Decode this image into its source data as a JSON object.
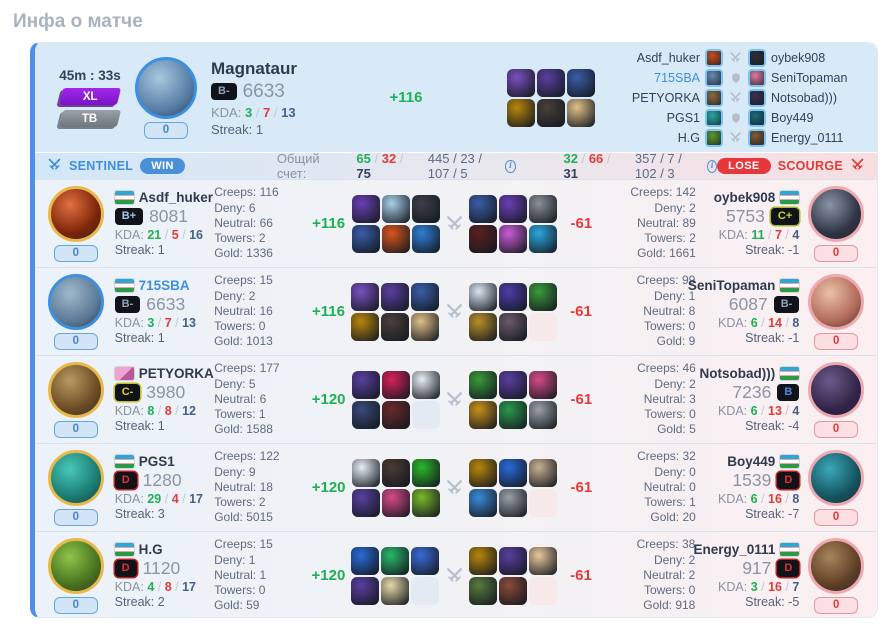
{
  "title": "Инфа о матче",
  "labels": {
    "kda": "KDA:",
    "streak": "Streak:",
    "creeps": "Creeps:",
    "deny": "Deny:",
    "neutral": "Neutral:",
    "towers": "Towers:",
    "gold": "Gold:"
  },
  "colors": {
    "accent": "#4f8fe8",
    "green": "#1faf54",
    "red": "#e23b3b",
    "win_pill": "#4a90d9",
    "lose_pill": "#e5383b",
    "rank_text": {
      "B+": "#a8c4e8",
      "B-": "#93a3b8",
      "B": "#4a8ad8",
      "C+": "#c9d630",
      "C-": "#e0d229",
      "D": "#e8302a"
    },
    "rank_border": {
      "C+": "#aab820",
      "C-": "#c8bc20",
      "D": "#c02020"
    }
  },
  "header": {
    "duration": "45m : 33s",
    "mode_badge": "XL",
    "type_badge": "TB",
    "counter": "0",
    "hero_name": "Magnataur",
    "rank": "B-",
    "rating": "6633",
    "k": "3",
    "d": "7",
    "a": "13",
    "streak": "1",
    "delta": "+116",
    "avatar": [
      "#a8c8e0",
      "#587ea6"
    ],
    "ring": "#3d8fe0",
    "items": [
      "#7a4fc0",
      "#5a3fa0",
      "#3a5da8",
      "#b8860b",
      "#4a3f3a",
      "#e0c088"
    ],
    "matchups": [
      {
        "left": "Asdf_huker",
        "right": "oybek908",
        "left_icon": "#c05020",
        "right_icon": "#2a2f3a",
        "vs": "swords"
      },
      {
        "left": "715SBA",
        "right": "SeniTopaman",
        "left_icon": "#6a8ab0",
        "right_icon": "#d87aa0",
        "vs": "shield",
        "left_color": "#3d8fe0"
      },
      {
        "left": "PETYORKA",
        "right": "Notsobad)))",
        "left_icon": "#8a6a40",
        "right_icon": "#3a3050",
        "vs": "swords"
      },
      {
        "left": "PGS1",
        "right": "Boy449",
        "left_icon": "#2aa8a0",
        "right_icon": "#1a6a7a",
        "vs": "shield"
      },
      {
        "left": "H.G",
        "right": "Energy_0111",
        "left_icon": "#5a9a2a",
        "right_icon": "#7a5a3a",
        "vs": "swords"
      }
    ]
  },
  "scorebar": {
    "sentinel": "SENTINEL",
    "win": "WIN",
    "total_label": "Общий счет:",
    "s_k": "65",
    "s_d": "32",
    "s_a": "75",
    "s_stats": "445 / 23 / 107 / 5",
    "c_k": "32",
    "c_d": "66",
    "c_a": "31",
    "c_stats": "357 / 7 / 102 / 3",
    "lose": "LOSE",
    "scourge": "SCOURGE",
    "info_icon": "i"
  },
  "rows": [
    {
      "left": {
        "name": "Asdf_huker",
        "flag": "uz",
        "rank": "B+",
        "rating": "8081",
        "k": "21",
        "d": "5",
        "a": "16",
        "streak": "1",
        "counter": "0",
        "creeps": "116",
        "deny": "6",
        "neutral": "66",
        "towers": "2",
        "gold": "1336",
        "delta": "+116",
        "av": [
          "#e07040",
          "#7a2408"
        ],
        "ring": "#e8b84a",
        "items": [
          "#6a3fb5",
          "#a8d0e8",
          "#3a3f4a",
          "#3a5da8",
          "#d8551e",
          "#2e7fd4"
        ]
      },
      "right": {
        "name": "oybek908",
        "flag": "uz",
        "rank": "C+",
        "rating": "5753",
        "k": "11",
        "d": "7",
        "a": "4",
        "streak": "-1",
        "counter": "0",
        "creeps": "142",
        "deny": "2",
        "neutral": "89",
        "towers": "2",
        "gold": "1661",
        "delta": "-61",
        "av": [
          "#8a93a8",
          "#2e3442"
        ],
        "ring": "#f0a8b0",
        "items": [
          "#3a5da8",
          "#6a3fb5",
          "#8a8f98",
          "#5a2020",
          "#c95bd8",
          "#2aa8e0"
        ]
      }
    },
    {
      "left": {
        "name": "715SBA",
        "name_color": "#3d8fe0",
        "flag": "uz",
        "rank": "B-",
        "rating": "6633",
        "k": "3",
        "d": "7",
        "a": "13",
        "streak": "1",
        "counter": "0",
        "creeps": "15",
        "deny": "2",
        "neutral": "16",
        "towers": "0",
        "gold": "1013",
        "delta": "+116",
        "av": [
          "#a0b8cc",
          "#5a7a96"
        ],
        "ring": "#3d8fe0",
        "items": [
          "#7a4fc0",
          "#5a3fa0",
          "#3a5da8",
          "#b8860b",
          "#4a3f3a",
          "#e0c088"
        ]
      },
      "right": {
        "name": "SeniTopaman",
        "flag": "uz",
        "rank": "B-",
        "rating": "6087",
        "k": "6",
        "d": "14",
        "a": "8",
        "streak": "-1",
        "counter": "0",
        "creeps": "99",
        "deny": "1",
        "neutral": "8",
        "towers": "0",
        "gold": "9",
        "delta": "-61",
        "av": [
          "#ecc0a8",
          "#b06a58"
        ],
        "ring": "#f0a8b0",
        "items": [
          "#d8e4f0",
          "#4a3fa8",
          "#3a9a3a",
          "#b8902a",
          "#6a5a6a",
          null
        ]
      }
    },
    {
      "left": {
        "name": "PETYORKA",
        "flag": "photo",
        "rank": "C-",
        "rating": "3980",
        "k": "8",
        "d": "8",
        "a": "12",
        "streak": "1",
        "counter": "0",
        "creeps": "177",
        "deny": "5",
        "neutral": "6",
        "towers": "1",
        "gold": "1588",
        "delta": "+120",
        "av": [
          "#b89a60",
          "#6a4a24"
        ],
        "ring": "#e8b84a",
        "items": [
          "#5a3fa0",
          "#d8205a",
          "#e8eef5",
          "#3a4a7a",
          "#6a2a2a",
          null
        ]
      },
      "right": {
        "name": "Notsobad)))",
        "flag": "uz",
        "rank": "B",
        "rating": "7236",
        "k": "6",
        "d": "13",
        "a": "4",
        "streak": "-4",
        "counter": "0",
        "creeps": "46",
        "deny": "2",
        "neutral": "3",
        "towers": "0",
        "gold": "5",
        "delta": "-61",
        "av": [
          "#6a5a8a",
          "#322448"
        ],
        "ring": "#f0a8b0",
        "items": [
          "#3a9a3a",
          "#5a3fa0",
          "#d84a8a",
          "#c8901a",
          "#2a9a4a",
          "#9aa0a8"
        ]
      }
    },
    {
      "left": {
        "name": "PGS1",
        "flag": "uz",
        "rank": "D",
        "rating": "1280",
        "k": "29",
        "d": "4",
        "a": "17",
        "streak": "3",
        "counter": "0",
        "creeps": "122",
        "deny": "9",
        "neutral": "18",
        "towers": "2",
        "gold": "5015",
        "delta": "+120",
        "av": [
          "#48c8b8",
          "#1a7a70"
        ],
        "ring": "#e8b84a",
        "items": [
          "#e8eef5",
          "#4a3a33",
          "#2ab82a",
          "#5a3fa0",
          "#d84a8a",
          "#7ab82a"
        ]
      },
      "right": {
        "name": "Boy449",
        "flag": "uz",
        "rank": "D",
        "rating": "1539",
        "k": "6",
        "d": "16",
        "a": "8",
        "streak": "-7",
        "counter": "0",
        "creeps": "32",
        "deny": "0",
        "neutral": "0",
        "towers": "1",
        "gold": "20",
        "delta": "-61",
        "av": [
          "#3aa8b8",
          "#14525e"
        ],
        "ring": "#f0a8b0",
        "items": [
          "#b8860b",
          "#2a6ad8",
          "#c8b090",
          "#3a8ad8",
          "#9aa0a8",
          null
        ]
      }
    },
    {
      "left": {
        "name": "H.G",
        "flag": "uz",
        "rank": "D",
        "rating": "1120",
        "k": "4",
        "d": "8",
        "a": "17",
        "streak": "2",
        "counter": "0",
        "creeps": "15",
        "deny": "1",
        "neutral": "1",
        "towers": "0",
        "gold": "59",
        "delta": "+120",
        "av": [
          "#8ec44a",
          "#47701e"
        ],
        "ring": "#e8b84a",
        "items": [
          "#2a6ad8",
          "#2ab86a",
          "#3a6ad8",
          "#5a3fa0",
          "#e8d8a8",
          null
        ]
      },
      "right": {
        "name": "Energy_0111",
        "flag": "uz",
        "rank": "D",
        "rating": "917",
        "k": "3",
        "d": "16",
        "a": "7",
        "streak": "-5",
        "counter": "0",
        "creeps": "38",
        "deny": "2",
        "neutral": "2",
        "towers": "0",
        "gold": "918",
        "delta": "-61",
        "av": [
          "#a8845c",
          "#5c3e24"
        ],
        "ring": "#f0a8b0",
        "items": [
          "#b8860b",
          "#5a3fa0",
          "#e8c89a",
          "#5a7a3a",
          "#8a4a3a",
          null
        ]
      }
    }
  ]
}
